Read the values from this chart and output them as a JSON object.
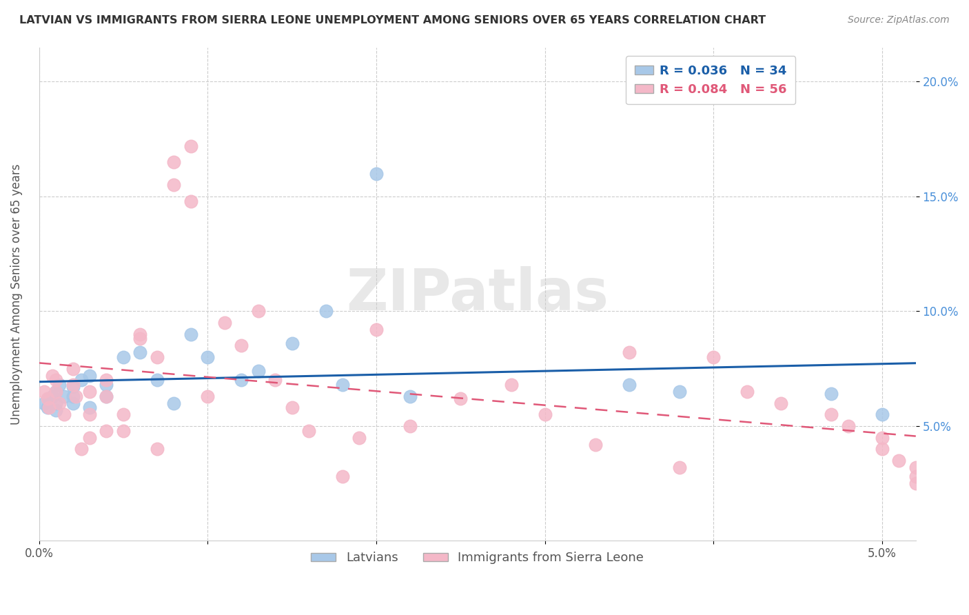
{
  "title": "LATVIAN VS IMMIGRANTS FROM SIERRA LEONE UNEMPLOYMENT AMONG SENIORS OVER 65 YEARS CORRELATION CHART",
  "source": "Source: ZipAtlas.com",
  "ylabel": "Unemployment Among Seniors over 65 years",
  "y_ticks": [
    0.05,
    0.1,
    0.15,
    0.2
  ],
  "y_tick_labels": [
    "5.0%",
    "10.0%",
    "15.0%",
    "20.0%"
  ],
  "xlim": [
    0.0,
    0.052
  ],
  "ylim": [
    0.0,
    0.215
  ],
  "latvian_color": "#a8c8e8",
  "latvian_line_color": "#1a5ea8",
  "sierra_leone_color": "#f4b8c8",
  "sierra_leone_line_color": "#e05878",
  "legend_R1": "0.036",
  "legend_N1": "34",
  "legend_R2": "0.084",
  "legend_N2": "56",
  "watermark": "ZIPatlas",
  "background_color": "#ffffff",
  "latvian_x": [
    0.0003,
    0.0005,
    0.0006,
    0.0008,
    0.001,
    0.001,
    0.001,
    0.0012,
    0.0015,
    0.002,
    0.002,
    0.002,
    0.0025,
    0.003,
    0.003,
    0.004,
    0.004,
    0.005,
    0.006,
    0.007,
    0.008,
    0.009,
    0.01,
    0.012,
    0.013,
    0.015,
    0.017,
    0.018,
    0.02,
    0.022,
    0.035,
    0.038,
    0.047,
    0.05
  ],
  "latvian_y": [
    0.06,
    0.058,
    0.062,
    0.063,
    0.065,
    0.06,
    0.057,
    0.068,
    0.063,
    0.067,
    0.063,
    0.06,
    0.07,
    0.072,
    0.058,
    0.068,
    0.063,
    0.08,
    0.082,
    0.07,
    0.06,
    0.09,
    0.08,
    0.07,
    0.074,
    0.086,
    0.1,
    0.068,
    0.16,
    0.063,
    0.068,
    0.065,
    0.064,
    0.055
  ],
  "sierra_leone_x": [
    0.0003,
    0.0005,
    0.0006,
    0.0008,
    0.001,
    0.001,
    0.0012,
    0.0015,
    0.002,
    0.002,
    0.0022,
    0.0025,
    0.003,
    0.003,
    0.003,
    0.004,
    0.004,
    0.004,
    0.005,
    0.005,
    0.006,
    0.006,
    0.007,
    0.007,
    0.008,
    0.008,
    0.009,
    0.009,
    0.01,
    0.011,
    0.012,
    0.013,
    0.014,
    0.015,
    0.016,
    0.018,
    0.019,
    0.02,
    0.022,
    0.025,
    0.028,
    0.03,
    0.033,
    0.035,
    0.038,
    0.04,
    0.042,
    0.044,
    0.047,
    0.048,
    0.05,
    0.05,
    0.051,
    0.052,
    0.052,
    0.052
  ],
  "sierra_leone_y": [
    0.065,
    0.062,
    0.058,
    0.072,
    0.07,
    0.065,
    0.06,
    0.055,
    0.075,
    0.068,
    0.063,
    0.04,
    0.065,
    0.055,
    0.045,
    0.07,
    0.063,
    0.048,
    0.055,
    0.048,
    0.09,
    0.088,
    0.08,
    0.04,
    0.155,
    0.165,
    0.172,
    0.148,
    0.063,
    0.095,
    0.085,
    0.1,
    0.07,
    0.058,
    0.048,
    0.028,
    0.045,
    0.092,
    0.05,
    0.062,
    0.068,
    0.055,
    0.042,
    0.082,
    0.032,
    0.08,
    0.065,
    0.06,
    0.055,
    0.05,
    0.045,
    0.04,
    0.035,
    0.032,
    0.028,
    0.025
  ]
}
